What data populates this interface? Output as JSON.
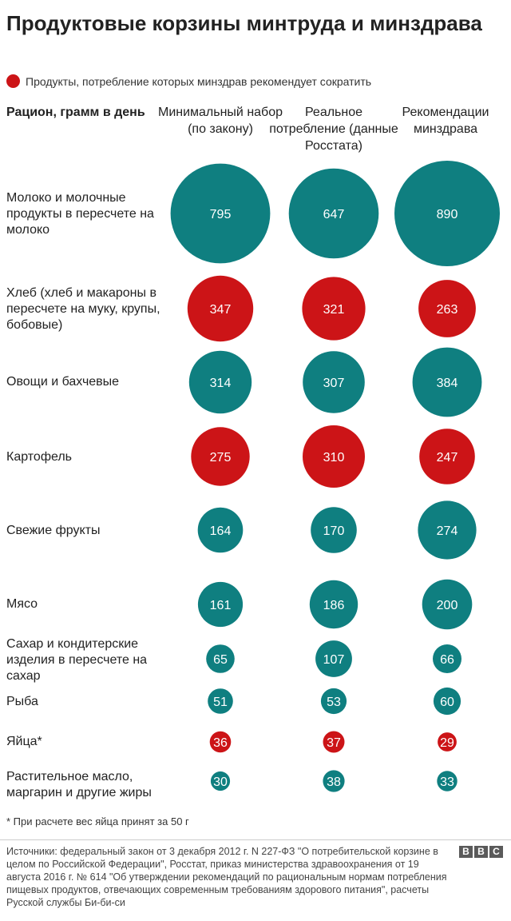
{
  "title": "Продуктовые корзины минтруда и минздрава",
  "legend": {
    "label": "Продукты, потребление которых минздрав рекомендует сократить"
  },
  "row_header": "Рацион, грамм в день",
  "columns": [
    "Минимальный набор (по закону)",
    "Реальное потребление (данные Росстата)",
    "Рекомендации минздрава"
  ],
  "colors": {
    "reduce": "#cc1417",
    "normal": "#0f7f80"
  },
  "chart_data": {
    "type": "bubble-table",
    "categories": [
      "Молоко и молочные продукты в пересчете на молоко",
      "Хлеб (хлеб и макароны в пересчете на муку, крупы, бобовые)",
      "Овощи и бахчевые",
      "Картофель",
      "Свежие фрукты",
      "Мясо",
      "Сахар и кондитерские изделия в пересчете на сахар",
      "Рыба",
      "Яйца*",
      "Растительное масло, маргарин и другие жиры"
    ],
    "series": [
      {
        "name": "Минимальный набор (по закону)",
        "values": [
          795,
          347,
          314,
          275,
          164,
          161,
          65,
          51,
          36,
          30
        ]
      },
      {
        "name": "Реальное потребление (данные Росстата)",
        "values": [
          647,
          321,
          307,
          310,
          170,
          186,
          107,
          53,
          37,
          38
        ]
      },
      {
        "name": "Рекомендации минздрава",
        "values": [
          890,
          263,
          384,
          247,
          274,
          200,
          66,
          60,
          29,
          33
        ]
      }
    ],
    "reduce": [
      false,
      true,
      false,
      true,
      false,
      false,
      false,
      false,
      true,
      false
    ]
  },
  "footnote": "* При расчете вес яйца принят за 50 г",
  "source": "Источники: федеральный закон от 3 декабря 2012 г. N 227-ФЗ \"О потребительской корзине в целом по Российской Федерации\", Росстат, приказ министерства здравоохранения от 19 августа 2016 г. № 614 \"Об утверждении рекомендаций по рациональным нормам потребления пищевых продуктов, отвечающих современным требованиям здорового питания\", расчеты Русской службы Би-би-си",
  "logo": [
    "B",
    "B",
    "C"
  ]
}
